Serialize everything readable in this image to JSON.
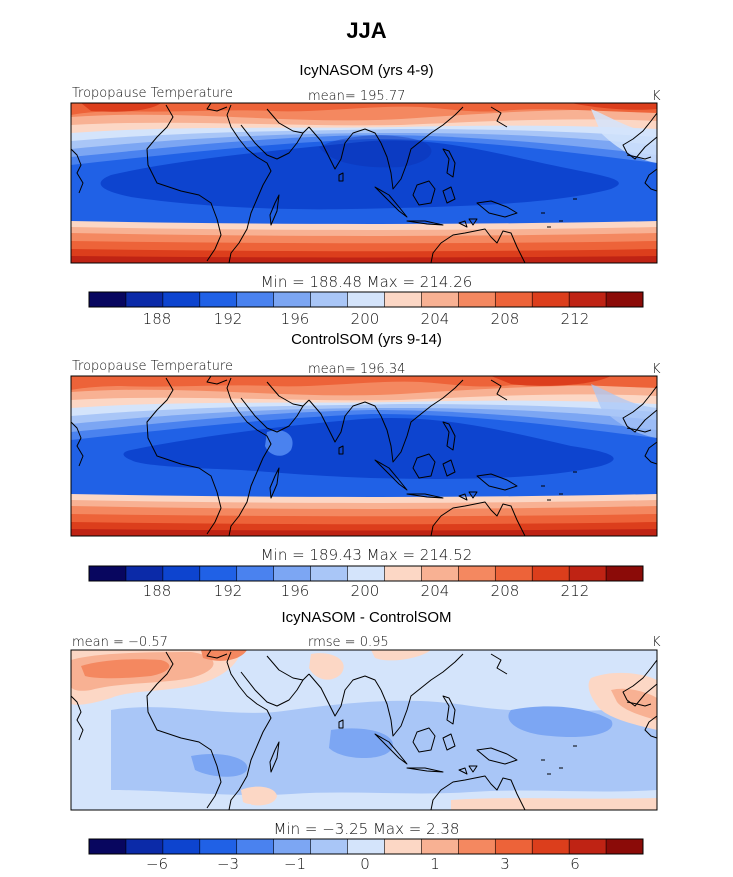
{
  "title": "JJA",
  "colors": [
    "#08065f",
    "#0b2aa8",
    "#0d44cf",
    "#2061e6",
    "#4a82ef",
    "#7ca6f3",
    "#a9c6f7",
    "#d4e4fb",
    "#fcd7c5",
    "#f8b193",
    "#f48860",
    "#ed6339",
    "#dc3e1c",
    "#bf2314",
    "#8b0b08"
  ],
  "panels": [
    {
      "name": "icy",
      "title": "IcyNASOM (yrs 4-9)",
      "left_label": "Tropopause Temperature",
      "center_label": "mean= 195.77",
      "unit": "K",
      "minmax": "Min = 188.48 Max = 214.26",
      "ticks": [
        "188",
        "192",
        "196",
        "200",
        "204",
        "208",
        "212"
      ]
    },
    {
      "name": "control",
      "title": "ControlSOM (yrs 9-14)",
      "left_label": "Tropopause Temperature",
      "center_label": "mean= 196.34",
      "unit": "K",
      "minmax": "Min = 189.43 Max = 214.52",
      "ticks": [
        "188",
        "192",
        "196",
        "200",
        "204",
        "208",
        "212"
      ]
    },
    {
      "name": "diff",
      "title": "IcyNASOM - ControlSOM",
      "left_label": "mean = −0.57",
      "center_label": "rmse = 0.95",
      "unit": "K",
      "minmax": "Min = −3.25 Max = 2.38",
      "ticks": [
        "−6",
        "−3",
        "−1",
        "0",
        "1",
        "3",
        "6"
      ]
    }
  ],
  "chart_data": [
    {
      "type": "heatmap",
      "title": "IcyNASOM (yrs 4-9)",
      "variable": "Tropopause Temperature",
      "units": "K",
      "mean": 195.77,
      "min": 188.48,
      "max": 214.26,
      "colorbar_ticks": [
        188,
        192,
        196,
        200,
        204,
        208,
        212
      ],
      "colorbar_levels": 15
    },
    {
      "type": "heatmap",
      "title": "ControlSOM (yrs 9-14)",
      "variable": "Tropopause Temperature",
      "units": "K",
      "mean": 196.34,
      "min": 189.43,
      "max": 214.52,
      "colorbar_ticks": [
        188,
        192,
        196,
        200,
        204,
        208,
        212
      ],
      "colorbar_levels": 15
    },
    {
      "type": "heatmap",
      "title": "IcyNASOM - ControlSOM",
      "units": "K",
      "mean": -0.57,
      "rmse": 0.95,
      "min": -3.25,
      "max": 2.38,
      "colorbar_ticks": [
        -6,
        -3,
        -1,
        0,
        1,
        3,
        6
      ],
      "colorbar_levels": 15
    }
  ]
}
